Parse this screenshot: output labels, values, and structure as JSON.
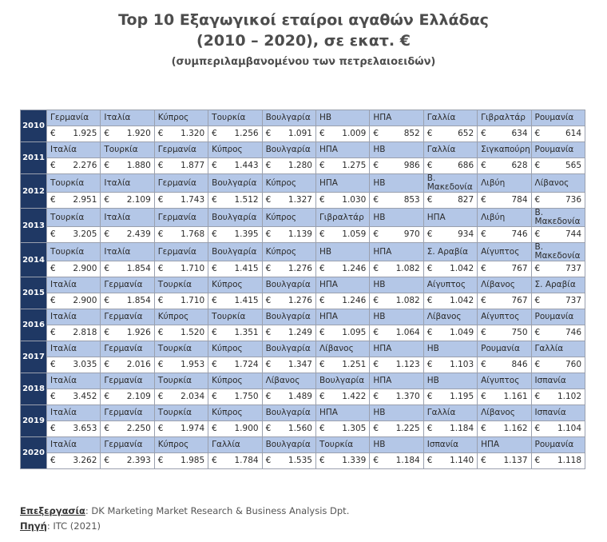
{
  "title_line1": "Top 10 Εξαγωγικοί εταίροι αγαθών Ελλάδας",
  "title_line2": "(2010 – 2020), σε εκατ. €",
  "subtitle": "(συμπεριλαμβανομένου των πετρελαιοειδών)",
  "currency_symbol": "€",
  "chart_data": {
    "type": "table",
    "title": "Top 10 Εξαγωγικοί εταίροι αγαθών Ελλάδας (2010 – 2020), σε εκατ. €",
    "subtitle": "(συμπεριλαμβανομένου των πετρελαιοειδών)",
    "rows": [
      {
        "year": "2010",
        "countries": [
          "Γερμανία",
          "Ιταλία",
          "Κύπρος",
          "Τουρκία",
          "Βουλγαρία",
          "ΗΒ",
          "ΗΠΑ",
          "Γαλλία",
          "Γιβραλτάρ",
          "Ρουμανία"
        ],
        "values": [
          "1.925",
          "1.920",
          "1.320",
          "1.256",
          "1.091",
          "1.009",
          "852",
          "652",
          "634",
          "614"
        ]
      },
      {
        "year": "2011",
        "countries": [
          "Ιταλία",
          "Τουρκία",
          "Γερμανία",
          "Κύπρος",
          "Βουλγαρία",
          "ΗΠΑ",
          "ΗΒ",
          "Γαλλία",
          "Σιγκαπούρη",
          "Ρουμανία"
        ],
        "values": [
          "2.276",
          "1.880",
          "1.877",
          "1.443",
          "1.280",
          "1.275",
          "986",
          "686",
          "628",
          "565"
        ]
      },
      {
        "year": "2012",
        "countries": [
          "Τουρκία",
          "Ιταλία",
          "Γερμανία",
          "Βουλγαρία",
          "Κύπρος",
          "ΗΠΑ",
          "ΗΒ",
          "Β. Μακεδονία",
          "Λιβύη",
          "Λίβανος"
        ],
        "values": [
          "2.951",
          "2.109",
          "1.743",
          "1.512",
          "1.327",
          "1.030",
          "853",
          "827",
          "784",
          "736"
        ]
      },
      {
        "year": "2013",
        "countries": [
          "Τουρκία",
          "Ιταλία",
          "Γερμανία",
          "Βουλγαρία",
          "Κύπρος",
          "Γιβραλτάρ",
          "ΗΒ",
          "ΗΠΑ",
          "Λιβύη",
          "Β. Μακεδονία"
        ],
        "values": [
          "3.205",
          "2.439",
          "1.768",
          "1.395",
          "1.139",
          "1.059",
          "970",
          "934",
          "746",
          "744"
        ]
      },
      {
        "year": "2014",
        "countries": [
          "Τουρκία",
          "Ιταλία",
          "Γερμανία",
          "Βουλγαρία",
          "Κύπρος",
          "ΗΒ",
          "ΗΠΑ",
          "Σ. Αραβία",
          "Αίγυπτος",
          "Β. Μακεδονία"
        ],
        "values": [
          "2.900",
          "1.854",
          "1.710",
          "1.415",
          "1.276",
          "1.246",
          "1.082",
          "1.042",
          "767",
          "737"
        ]
      },
      {
        "year": "2015",
        "countries": [
          "Ιταλία",
          "Γερμανία",
          "Τουρκία",
          "Κύπρος",
          "Βουλγαρία",
          "ΗΠΑ",
          "ΗΒ",
          "Αίγυπτος",
          "Λίβανος",
          "Σ. Αραβία"
        ],
        "values": [
          "2.900",
          "1.854",
          "1.710",
          "1.415",
          "1.276",
          "1.246",
          "1.082",
          "1.042",
          "767",
          "737"
        ]
      },
      {
        "year": "2016",
        "countries": [
          "Ιταλία",
          "Γερμανία",
          "Κύπρος",
          "Τουρκία",
          "Βουλγαρία",
          "ΗΠΑ",
          "ΗΒ",
          "Λίβανος",
          "Αίγυπτος",
          "Ρουμανία"
        ],
        "values": [
          "2.818",
          "1.926",
          "1.520",
          "1.351",
          "1.249",
          "1.095",
          "1.064",
          "1.049",
          "750",
          "746"
        ]
      },
      {
        "year": "2017",
        "countries": [
          "Ιταλία",
          "Γερμανία",
          "Τουρκία",
          "Κύπρος",
          "Βουλγαρία",
          "Λίβανος",
          "ΗΠΑ",
          "ΗΒ",
          "Ρουμανία",
          "Γαλλία"
        ],
        "values": [
          "3.035",
          "2.016",
          "1.953",
          "1.724",
          "1.347",
          "1.251",
          "1.123",
          "1.103",
          "846",
          "760"
        ]
      },
      {
        "year": "2018",
        "countries": [
          "Ιταλία",
          "Γερμανία",
          "Τουρκία",
          "Κύπρος",
          "Λίβανος",
          "Βουλγαρία",
          "ΗΠΑ",
          "ΗΒ",
          "Αίγυπτος",
          "Ισπανία"
        ],
        "values": [
          "3.452",
          "2.109",
          "2.034",
          "1.750",
          "1.489",
          "1.422",
          "1.370",
          "1.195",
          "1.161",
          "1.102"
        ]
      },
      {
        "year": "2019",
        "countries": [
          "Ιταλία",
          "Γερμανία",
          "Τουρκία",
          "Κύπρος",
          "Βουλγαρία",
          "ΗΠΑ",
          "ΗΒ",
          "Γαλλία",
          "Λίβανος",
          "Ισπανία"
        ],
        "values": [
          "3.653",
          "2.250",
          "1.974",
          "1.900",
          "1.560",
          "1.305",
          "1.225",
          "1.184",
          "1.162",
          "1.104"
        ]
      },
      {
        "year": "2020",
        "countries": [
          "Ιταλία",
          "Γερμανία",
          "Κύπρος",
          "Γαλλία",
          "Βουλγαρία",
          "Τουρκία",
          "ΗΒ",
          "Ισπανία",
          "ΗΠΑ",
          "Ρουμανία"
        ],
        "values": [
          "3.262",
          "2.393",
          "1.985",
          "1.784",
          "1.535",
          "1.339",
          "1.184",
          "1.140",
          "1.137",
          "1.118"
        ]
      }
    ]
  },
  "colors": {
    "year_bg": "#1f3864",
    "country_row_bg": "#b4c7e7",
    "value_row_bg": "#ffffff",
    "title_color": "#4d4d4d"
  },
  "footer": {
    "processing_label": "Επεξεργασία",
    "processing_text": "DK Marketing Market Research & Business Analysis Dpt.",
    "source_label": "Πηγή",
    "source_text": "ITC (2021)"
  }
}
